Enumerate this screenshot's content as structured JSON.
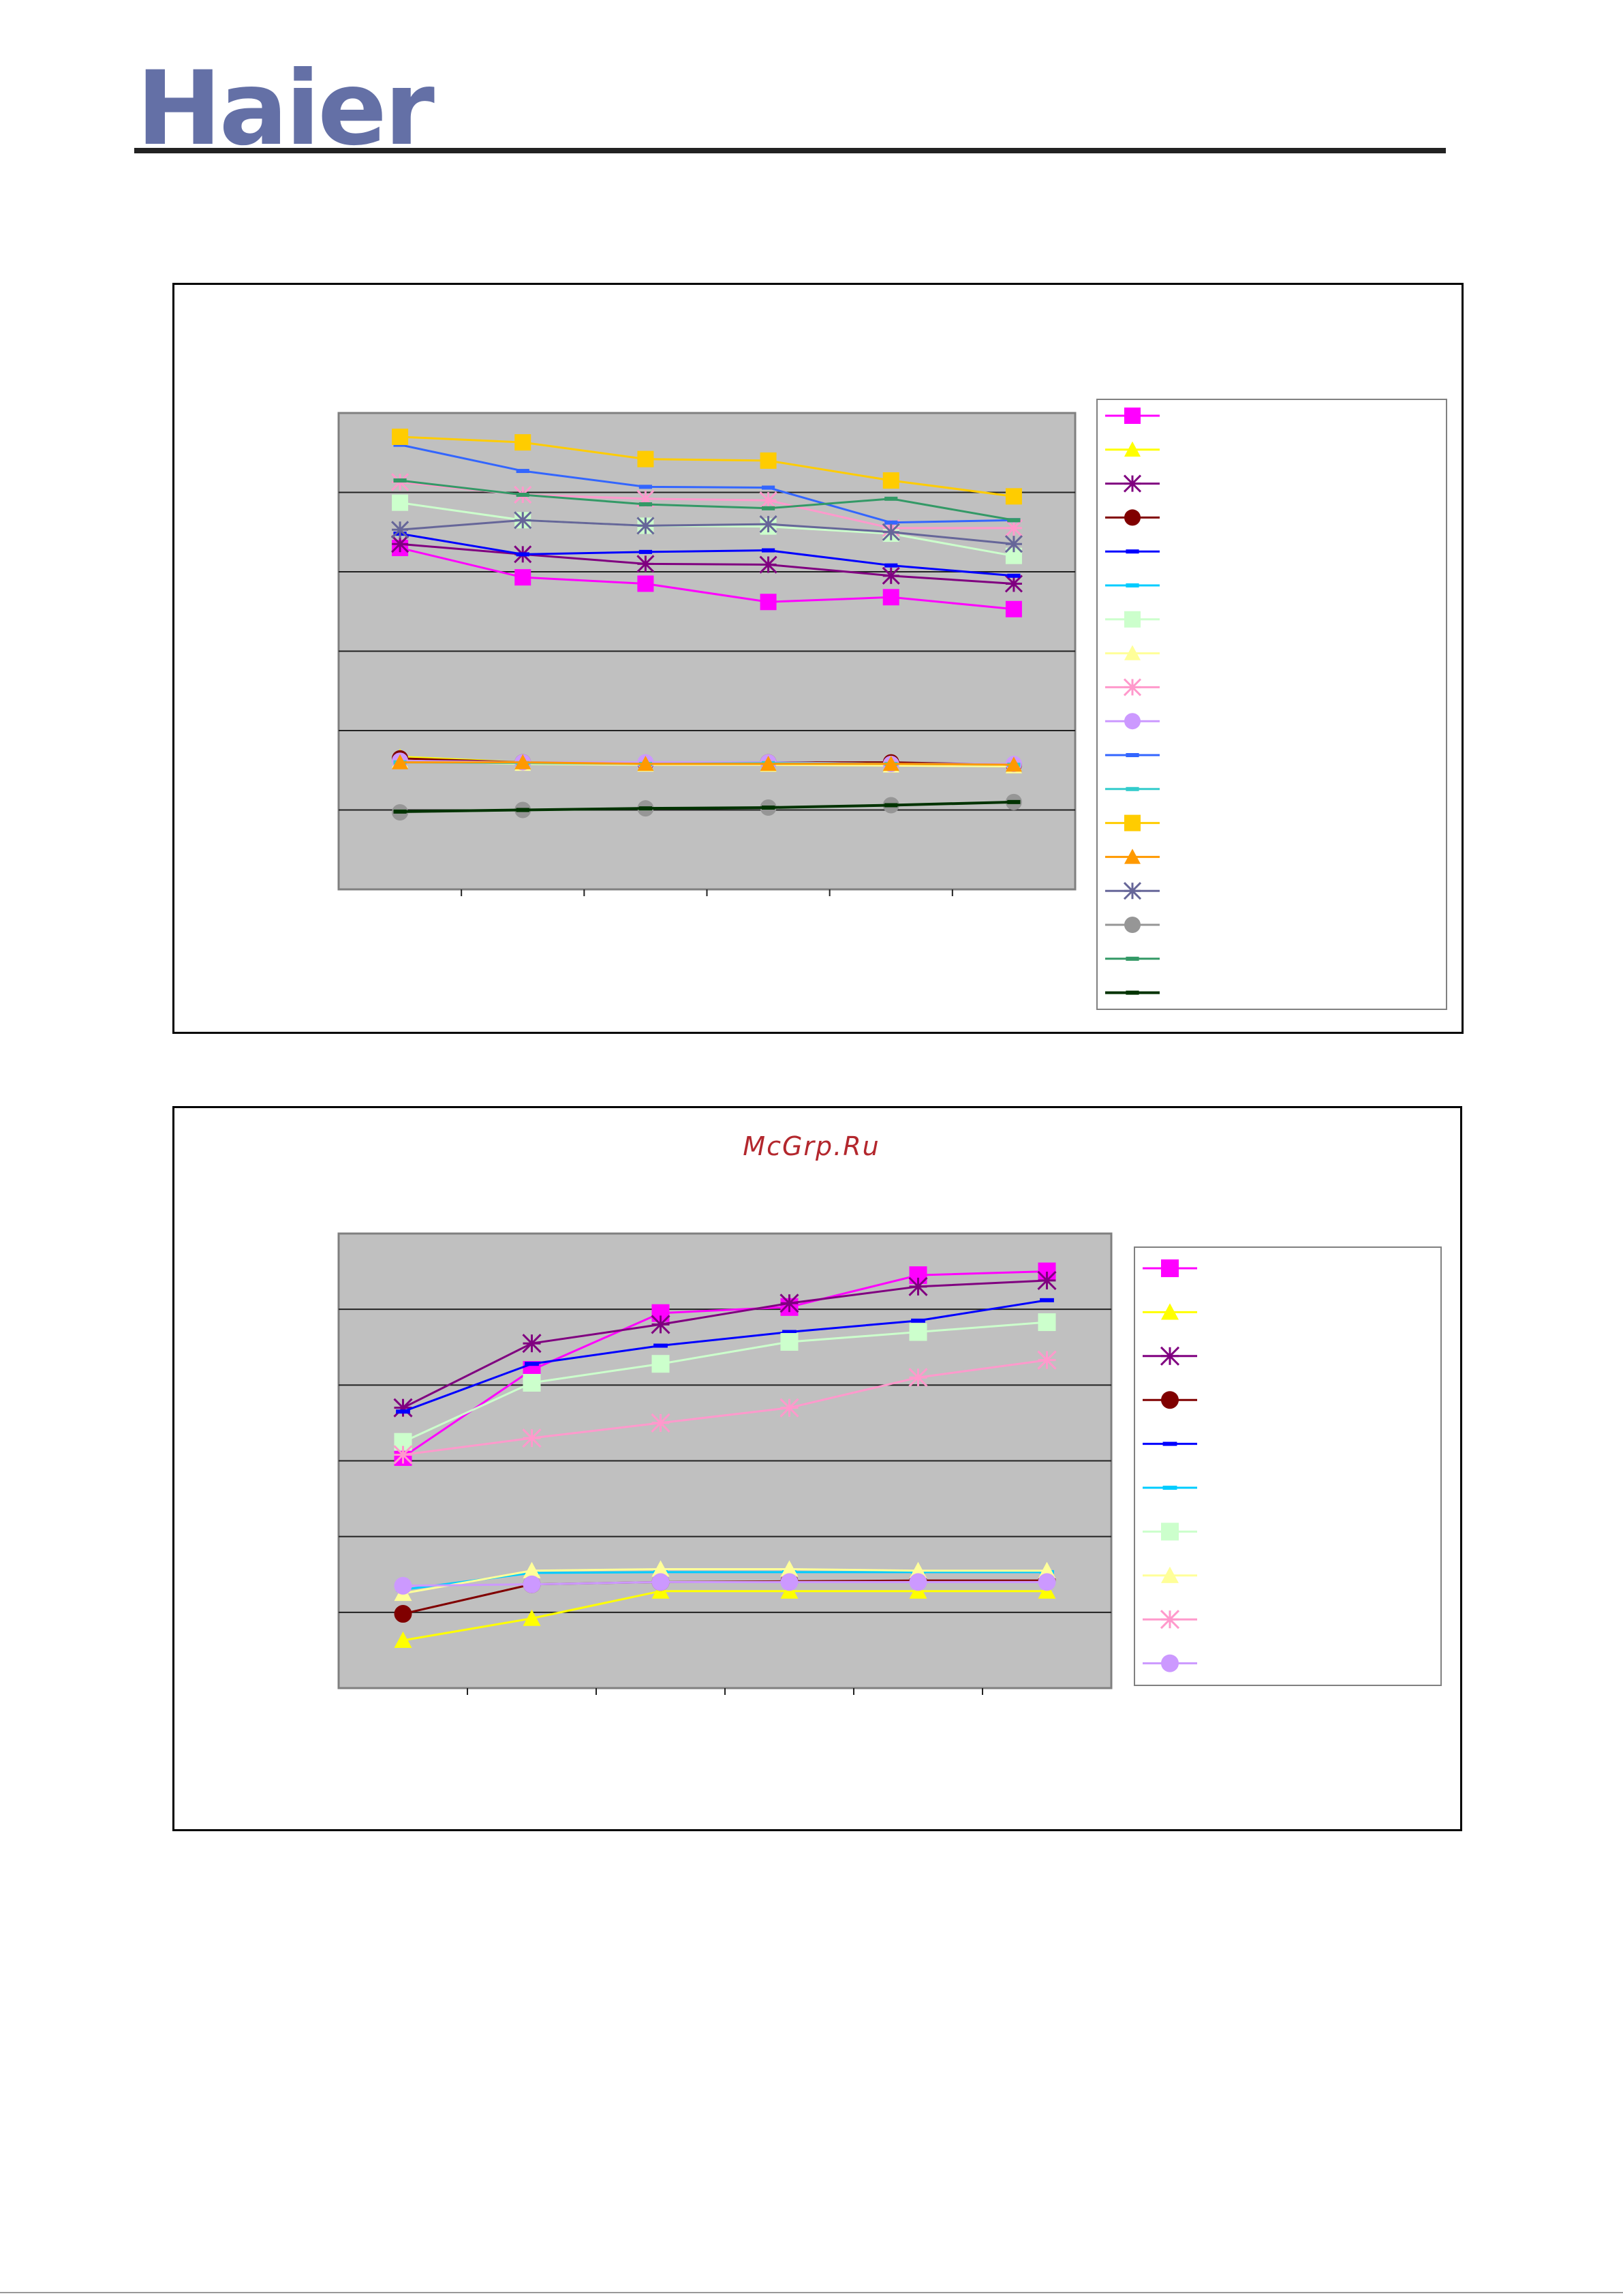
{
  "header": {
    "logo_text": "Haier",
    "logo_color": "#6470a6"
  },
  "watermark": {
    "text": "McGrp.Ru",
    "color": "#b3272d"
  },
  "chart_data": [
    {
      "type": "line",
      "title": "",
      "xlabel": "",
      "ylabel": "",
      "ylim": [
        0,
        6
      ],
      "grid": true,
      "legend": "right",
      "x_count": 6,
      "series": [
        {
          "values": [
            4.3,
            3.93,
            3.85,
            3.62,
            3.68,
            3.53
          ],
          "color": "#ff00ff",
          "marker": "square",
          "stroke": 3
        },
        {
          "values": [
            1.67,
            1.6,
            1.58,
            1.57,
            1.56,
            1.55
          ],
          "color": "#ffff00",
          "marker": "triangle",
          "stroke": 3
        },
        {
          "values": [
            4.35,
            4.22,
            4.1,
            4.09,
            3.95,
            3.85
          ],
          "color": "#800080",
          "marker": "asterisk",
          "stroke": 3
        },
        {
          "values": [
            1.65,
            1.6,
            1.59,
            1.6,
            1.6,
            1.57
          ],
          "color": "#800000",
          "marker": "circle",
          "stroke": 3
        },
        {
          "values": [
            4.48,
            4.22,
            4.25,
            4.27,
            4.08,
            3.95
          ],
          "color": "#0000ff",
          "marker": "dash",
          "stroke": 3
        },
        {
          "values": [
            1.62,
            1.59,
            1.59,
            1.6,
            1.58,
            1.57
          ],
          "color": "#00ccff",
          "marker": "dash",
          "stroke": 3
        },
        {
          "values": [
            4.87,
            4.65,
            4.58,
            4.57,
            4.48,
            4.2
          ],
          "color": "#ccffcc",
          "marker": "square",
          "stroke": 3
        },
        {
          "values": [
            1.62,
            1.58,
            1.57,
            1.57,
            1.56,
            1.55
          ],
          "color": "#ffff99",
          "marker": "triangle",
          "stroke": 3
        },
        {
          "values": [
            5.13,
            4.97,
            4.92,
            4.9,
            4.55,
            4.55
          ],
          "color": "#ff99cc",
          "marker": "asterisk",
          "stroke": 3
        },
        {
          "values": [
            1.62,
            1.6,
            1.6,
            1.6,
            1.58,
            1.58
          ],
          "color": "#cc99ff",
          "marker": "circle",
          "stroke": 3
        },
        {
          "values": [
            5.6,
            5.27,
            5.07,
            5.06,
            4.62,
            4.65
          ],
          "color": "#3366ff",
          "marker": "dash",
          "stroke": 3
        },
        {
          "values": [
            1.6,
            1.59,
            1.58,
            1.59,
            1.58,
            1.57
          ],
          "color": "#33cccc",
          "marker": "dash",
          "stroke": 3
        },
        {
          "values": [
            5.7,
            5.63,
            5.42,
            5.4,
            5.15,
            4.95
          ],
          "color": "#ffcc00",
          "marker": "square",
          "stroke": 3
        },
        {
          "values": [
            1.6,
            1.6,
            1.58,
            1.58,
            1.58,
            1.57
          ],
          "color": "#ff9900",
          "marker": "triangle",
          "stroke": 3
        },
        {
          "values": [
            4.53,
            4.65,
            4.58,
            4.6,
            4.5,
            4.35
          ],
          "color": "#666699",
          "marker": "asterisk",
          "stroke": 3
        },
        {
          "values": [
            0.97,
            1.0,
            1.02,
            1.03,
            1.06,
            1.1
          ],
          "color": "#969696",
          "marker": "circle",
          "stroke": 3
        },
        {
          "values": [
            5.15,
            4.97,
            4.85,
            4.8,
            4.92,
            4.65
          ],
          "color": "#339966",
          "marker": "dash",
          "stroke": 3
        },
        {
          "values": [
            0.98,
            1.0,
            1.02,
            1.03,
            1.06,
            1.1
          ],
          "color": "#003300",
          "marker": "dash",
          "stroke": 4
        }
      ]
    },
    {
      "type": "line",
      "title": "",
      "xlabel": "",
      "ylabel": "",
      "ylim": [
        0,
        6
      ],
      "grid": true,
      "legend": "right",
      "x_count": 6,
      "series": [
        {
          "values": [
            3.05,
            4.2,
            4.95,
            5.03,
            5.45,
            5.5
          ],
          "color": "#ff00ff",
          "marker": "square",
          "stroke": 3
        },
        {
          "values": [
            0.63,
            0.92,
            1.28,
            1.28,
            1.28,
            1.28
          ],
          "color": "#ffff00",
          "marker": "triangle",
          "stroke": 3
        },
        {
          "values": [
            3.7,
            4.55,
            4.8,
            5.08,
            5.3,
            5.38
          ],
          "color": "#800080",
          "marker": "asterisk",
          "stroke": 3
        },
        {
          "values": [
            0.98,
            1.37,
            1.4,
            1.41,
            1.42,
            1.42
          ],
          "color": "#800000",
          "marker": "circle",
          "stroke": 3
        },
        {
          "values": [
            3.65,
            4.28,
            4.52,
            4.7,
            4.85,
            5.12
          ],
          "color": "#0000ff",
          "marker": "dash",
          "stroke": 3
        },
        {
          "values": [
            1.3,
            1.52,
            1.53,
            1.53,
            1.53,
            1.53
          ],
          "color": "#00ccff",
          "marker": "dash",
          "stroke": 3
        },
        {
          "values": [
            3.25,
            4.03,
            4.28,
            4.57,
            4.7,
            4.83
          ],
          "color": "#ccffcc",
          "marker": "square",
          "stroke": 3
        },
        {
          "values": [
            1.25,
            1.55,
            1.57,
            1.57,
            1.55,
            1.55
          ],
          "color": "#ffff99",
          "marker": "triangle",
          "stroke": 3
        },
        {
          "values": [
            3.08,
            3.3,
            3.5,
            3.7,
            4.1,
            4.33
          ],
          "color": "#ff99cc",
          "marker": "asterisk",
          "stroke": 3
        },
        {
          "values": [
            1.35,
            1.37,
            1.4,
            1.4,
            1.4,
            1.4
          ],
          "color": "#cc99ff",
          "marker": "circle",
          "stroke": 3
        }
      ]
    }
  ]
}
